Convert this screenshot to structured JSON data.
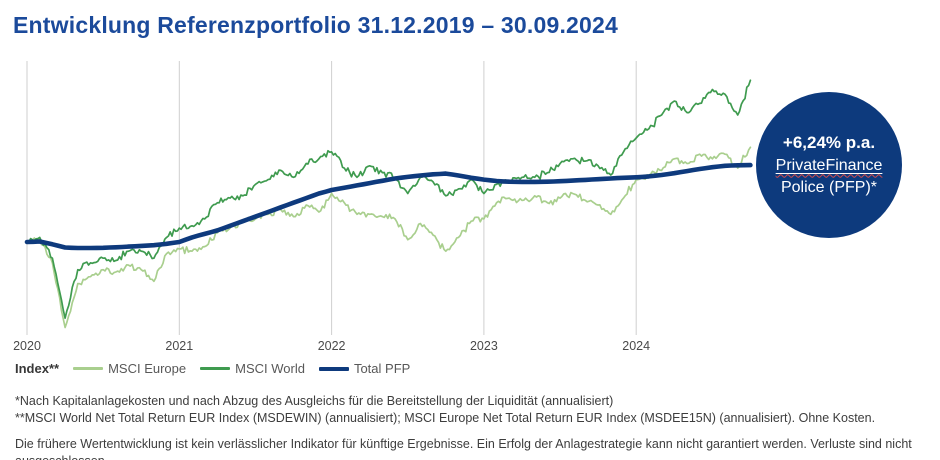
{
  "title": "Entwicklung Referenzportfolio 31.12.2019 – 30.09.2024",
  "badge": {
    "rate": "+6,24% p.a.",
    "product_line1": "PrivateFinance",
    "product_line2": "Police (PFP)*"
  },
  "legend": {
    "prefix": "Index**",
    "items": [
      {
        "label": "MSCI Europe",
        "color": "#a9cf8e",
        "thickness": 2.5
      },
      {
        "label": "MSCI World",
        "color": "#3f9b4f",
        "thickness": 2.5
      },
      {
        "label": "Total PFP",
        "color": "#0e3a7d",
        "thickness": 4
      }
    ]
  },
  "footnotes": [
    "*Nach Kapitalanlagekosten und nach Abzug des Ausgleichs für die Bereitstellung der Liquidität (annualisiert)",
    "**MSCI World Net Total Return EUR Index (MSDEWIN) (annualisiert); MSCI Europe Net Total Return EUR Index (MSDEE15N) (annualisiert). Ohne Kosten.",
    "Die frühere Wertentwicklung ist kein verlässlicher Indikator für künftige Ergebnisse. Ein Erfolg der Anlagestrategie kann nicht garantiert werden. Verluste sind nicht ausgeschlossen."
  ],
  "colors": {
    "title_blue": "#1b4a9b",
    "navy": "#0d3a7d",
    "msci_world_green": "#3f9b4f",
    "msci_europe_green": "#a9cf8e",
    "gridline": "#cfcfcf",
    "axis_label": "#4a4a4a",
    "footnote_text": "#3d3d3d",
    "background": "#ffffff"
  },
  "chart_data": {
    "type": "line",
    "title": "Entwicklung Referenzportfolio 31.12.2019 – 30.09.2024",
    "xlabel": "",
    "ylabel": "",
    "x_unit": "month",
    "index_base": 100,
    "period_start": "31.12.2019",
    "period_end": "30.09.2024",
    "grid": "vertical-only",
    "y_axis_shown": false,
    "legend_position": "bottom",
    "x_tick_labels": [
      "2020",
      "2021",
      "2022",
      "2023",
      "2024"
    ],
    "ylim": [
      58,
      180
    ],
    "x": [
      "2019-12",
      "2020-01",
      "2020-02",
      "2020-03",
      "2020-04",
      "2020-05",
      "2020-06",
      "2020-07",
      "2020-08",
      "2020-09",
      "2020-10",
      "2020-11",
      "2020-12",
      "2021-01",
      "2021-02",
      "2021-03",
      "2021-04",
      "2021-05",
      "2021-06",
      "2021-07",
      "2021-08",
      "2021-09",
      "2021-10",
      "2021-11",
      "2021-12",
      "2022-01",
      "2022-02",
      "2022-03",
      "2022-04",
      "2022-05",
      "2022-06",
      "2022-07",
      "2022-08",
      "2022-09",
      "2022-10",
      "2022-11",
      "2022-12",
      "2023-01",
      "2023-02",
      "2023-03",
      "2023-04",
      "2023-05",
      "2023-06",
      "2023-07",
      "2023-08",
      "2023-09",
      "2023-10",
      "2023-11",
      "2023-12",
      "2024-01",
      "2024-02",
      "2024-03",
      "2024-04",
      "2024-05",
      "2024-06",
      "2024-07",
      "2024-08",
      "2024-09"
    ],
    "series": [
      {
        "name": "MSCI Europe",
        "color": "#a9cf8e",
        "values": [
          100,
          101,
          91,
          63,
          82,
          85,
          88,
          87,
          90,
          88,
          83,
          95,
          97,
          96,
          98,
          104,
          106,
          109,
          110,
          112,
          114,
          111,
          116,
          113,
          121,
          117,
          112,
          112,
          111,
          110,
          101,
          108,
          103,
          96,
          102,
          109,
          110,
          117,
          119,
          118,
          120,
          117,
          119,
          121,
          118,
          116,
          112,
          119,
          127,
          129,
          131,
          136,
          134,
          138,
          136,
          138,
          132,
          141
        ]
      },
      {
        "name": "MSCI World",
        "color": "#3f9b4f",
        "values": [
          100,
          102,
          93,
          67,
          88,
          91,
          93,
          92,
          96,
          96,
          93,
          102,
          106,
          107,
          110,
          117,
          119,
          120,
          125,
          127,
          131,
          128,
          134,
          136,
          139,
          132,
          128,
          133,
          130,
          128,
          121,
          128,
          126,
          120,
          123,
          127,
          121,
          125,
          126,
          128,
          128,
          130,
          134,
          136,
          135,
          133,
          129,
          139,
          145,
          149,
          155,
          161,
          156,
          160,
          166,
          164,
          155,
          170
        ]
      },
      {
        "name": "Total PFP",
        "color": "#0e3a7d",
        "values": [
          100,
          100.2,
          99,
          97.6,
          97.4,
          97.4,
          97.5,
          97.7,
          98,
          98.3,
          98.6,
          99.2,
          100,
          102,
          103.5,
          105,
          107,
          109,
          111,
          113,
          115,
          117,
          119,
          121,
          122.5,
          123.5,
          124.5,
          125.5,
          126.5,
          127.5,
          128.2,
          128.8,
          129.3,
          129.6,
          128.8,
          127.8,
          127,
          126.4,
          126.1,
          126,
          126,
          126.1,
          126.3,
          126.6,
          126.9,
          127.2,
          127.5,
          127.8,
          128,
          128.4,
          129,
          129.8,
          130.7,
          131.6,
          132.4,
          133,
          133.2,
          133.3
        ]
      }
    ],
    "annotation": {
      "text": "+6,24% p.a. PrivateFinance Police (PFP)*",
      "refers_to": "Total PFP"
    }
  }
}
